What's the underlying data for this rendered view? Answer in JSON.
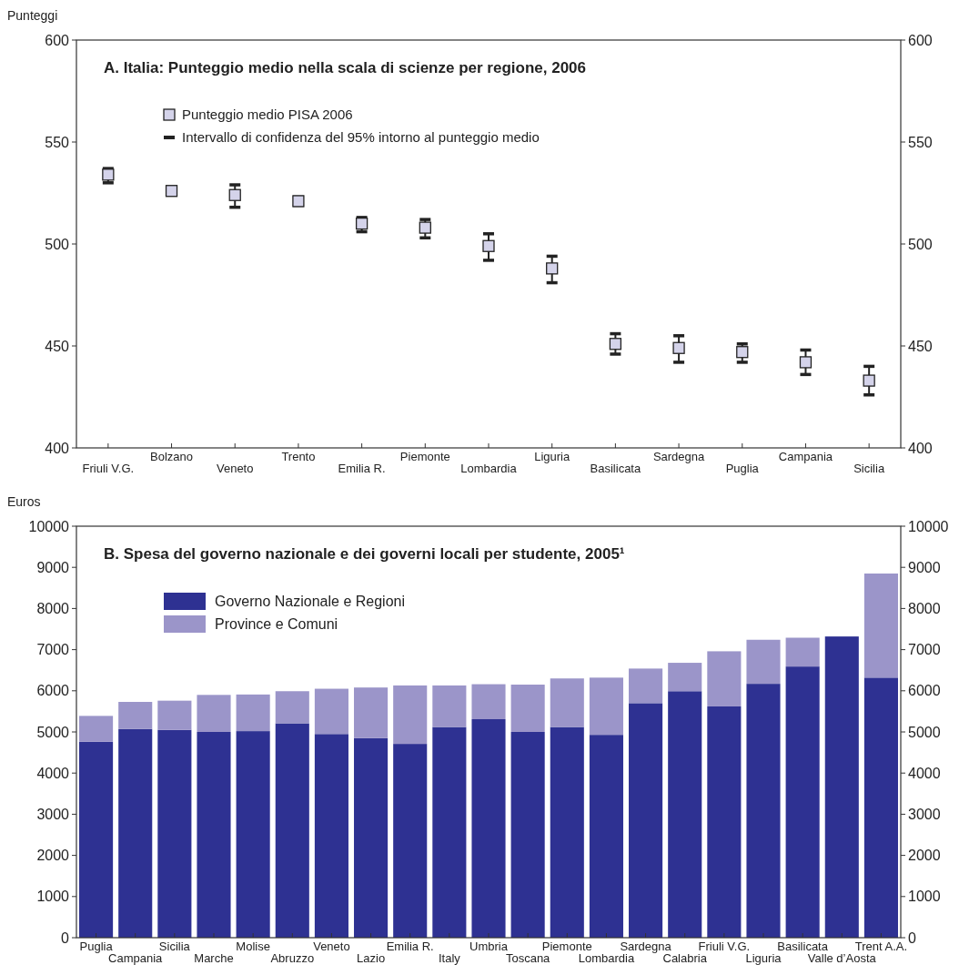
{
  "chart_data": [
    {
      "type": "scatter",
      "title": "A. Italia: Punteggio medio nella scala di scienze per regione, 2006",
      "ylabel": "Punteggi",
      "categories": [
        "Friuli V.G.",
        "Bolzano",
        "Veneto",
        "Trento",
        "Emilia R.",
        "Piemonte",
        "Lombardia",
        "Liguria",
        "Basilicata",
        "Sardegna",
        "Puglia",
        "Campania",
        "Sicilia"
      ],
      "series": [
        {
          "name": "Punteggio medio PISA 2006",
          "color": "#d4d3ea",
          "values": [
            534,
            526,
            524,
            521,
            510,
            508,
            499,
            488,
            451,
            449,
            447,
            442,
            433
          ],
          "errors": [
            [
              530,
              537
            ],
            [
              524,
              528
            ],
            [
              518,
              529
            ],
            [
              519,
              523
            ],
            [
              506,
              513
            ],
            [
              503,
              512
            ],
            [
              492,
              505
            ],
            [
              481,
              494
            ],
            [
              446,
              456
            ],
            [
              442,
              455
            ],
            [
              442,
              451
            ],
            [
              436,
              448
            ],
            [
              426,
              440
            ]
          ]
        }
      ],
      "marker": "square",
      "annotations": [
        "Intervallo di confidenza del 95% intorno al punteggio medio"
      ],
      "legend": "top left",
      "ylim": [
        400,
        600
      ],
      "yticks": [
        400,
        450,
        500,
        550,
        600
      ],
      "y2lim": [
        400,
        600
      ],
      "y2ticks": [
        400,
        450,
        500,
        550,
        600
      ]
    },
    {
      "type": "bar",
      "title": "B. Spesa del governo nazionale e dei governi locali per studente, 2005¹",
      "ylabel": "Euros",
      "stacked": true,
      "categories": [
        "Puglia",
        "Campania",
        "Sicilia",
        "Marche",
        "Molise",
        "Abruzzo",
        "Veneto",
        "Lazio",
        "Emilia R.",
        "Italy",
        "Umbria",
        "Toscana",
        "Piemonte",
        "Lombardia",
        "Sardegna",
        "Calabria",
        "Friuli V.G.",
        "Liguria",
        "Basilicata",
        "Valle d’Aosta",
        "Trent A.A."
      ],
      "series": [
        {
          "name": "Governo Nazionale e Regioni",
          "color": "#2e3192",
          "values": [
            4760,
            5070,
            5050,
            5000,
            5020,
            5210,
            4950,
            4850,
            4710,
            5120,
            5310,
            5000,
            5120,
            4930,
            5700,
            5990,
            5620,
            6170,
            6590,
            7320,
            6320
          ]
        },
        {
          "name": "Province e Comuni",
          "color": "#9b95c9",
          "values": [
            630,
            660,
            710,
            900,
            890,
            780,
            1100,
            1230,
            1420,
            1010,
            850,
            1150,
            1180,
            1390,
            840,
            690,
            1340,
            1070,
            700,
            0,
            2530
          ]
        }
      ],
      "legend": "top left",
      "ylim": [
        0,
        10000
      ],
      "yticks": [
        0,
        1000,
        2000,
        3000,
        4000,
        5000,
        6000,
        7000,
        8000,
        9000,
        10000
      ],
      "y2lim": [
        0,
        10000
      ],
      "y2ticks": [
        0,
        1000,
        2000,
        3000,
        4000,
        5000,
        6000,
        7000,
        8000,
        9000,
        10000
      ]
    }
  ]
}
